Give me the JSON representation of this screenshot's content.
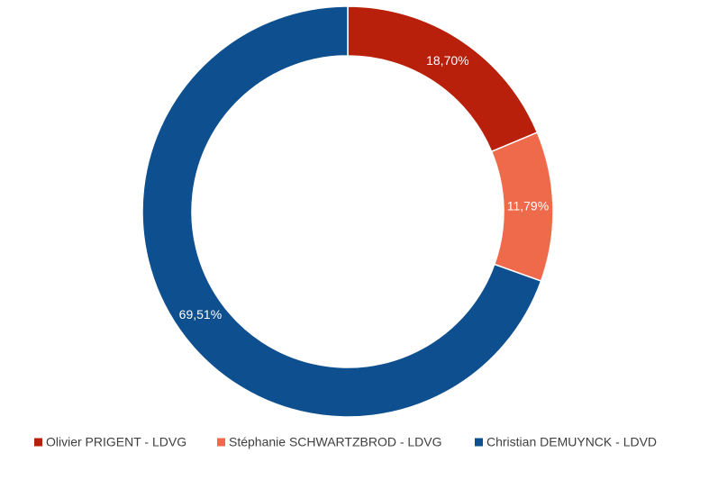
{
  "chart_data": {
    "type": "donut",
    "categories": [
      "Olivier PRIGENT - LDVG",
      "Stéphanie SCHWARTZBROD - LDVG",
      "Christian DEMUYNCK - LDVD"
    ],
    "values": [
      18.7,
      11.79,
      69.51
    ],
    "value_labels": [
      "18,70%",
      "11,79%",
      "69,51%"
    ],
    "colors": [
      "#b8200b",
      "#ee6a4b",
      "#0e4f8f"
    ],
    "legend": "bottom"
  }
}
